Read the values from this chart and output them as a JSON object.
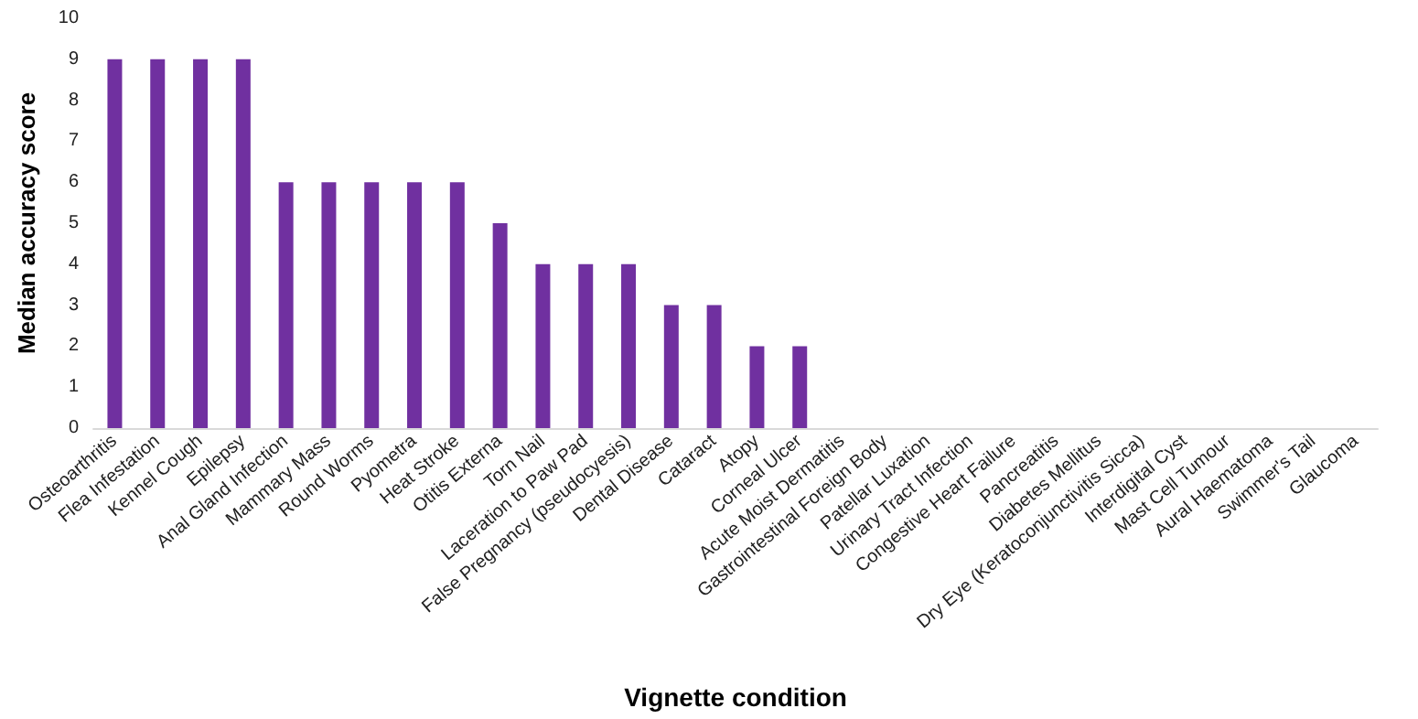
{
  "chart_data": {
    "type": "bar",
    "xlabel": "Vignette condition",
    "ylabel": "Median accuracy score",
    "categories": [
      "Osteoarthritis",
      "Flea Infestation",
      "Kennel Cough",
      "Epilepsy",
      "Anal Gland Infection",
      "Mammary Mass",
      "Round Worms",
      "Pyometra",
      "Heat Stroke",
      "Otitis Externa",
      "Torn Nail",
      "Laceration to Paw Pad",
      "False Pregnancy (pseudocyesis)",
      "Dental Disease",
      "Cataract",
      "Atopy",
      "Corneal Ulcer",
      "Acute Moist Dermatitis",
      "Gastrointestinal Foreign Body",
      "Patellar Luxation",
      "Urinary Tract Infection",
      "Congestive Heart Failure",
      "Pancreatitis",
      "Diabetes Mellitus",
      "Dry Eye (Keratoconjunctivitis Sicca)",
      "Interdigital Cyst",
      "Mast Cell Tumour",
      "Aural Haematoma",
      "Swimmer's Tail",
      "Glaucoma"
    ],
    "values": [
      9,
      9,
      9,
      9,
      6,
      6,
      6,
      6,
      6,
      5,
      4,
      4,
      4,
      3,
      3,
      2,
      2,
      0,
      0,
      0,
      0,
      0,
      0,
      0,
      0,
      0,
      0,
      0,
      0,
      0
    ],
    "color": "#7030a0",
    "ylim": [
      0,
      10
    ],
    "yticks": [
      0,
      1,
      2,
      3,
      4,
      5,
      6,
      7,
      8,
      9,
      10
    ],
    "grid": false
  }
}
